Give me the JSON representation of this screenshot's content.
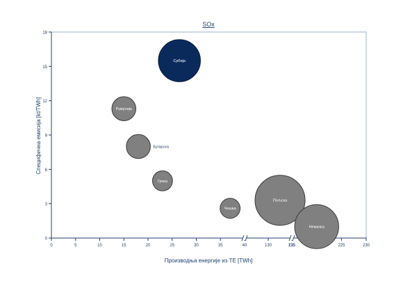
{
  "chart_data": {
    "type": "bubble",
    "title": "SOx",
    "xlabel": "Производња енергије из ТЕ [TWh]",
    "ylabel": "Специфична емисија [kt/TWh]",
    "ylim": [
      0,
      18
    ],
    "y_ticks": [
      "0",
      "3",
      "6",
      "9",
      "12",
      "15",
      "18"
    ],
    "x_segments": [
      {
        "range": [
          0,
          40
        ],
        "ticks": [
          "0",
          "5",
          "10",
          "15",
          "20",
          "25",
          "30",
          "35",
          "40"
        ]
      },
      {
        "range": [
          125,
          135
        ],
        "ticks": [
          "130",
          "135"
        ]
      },
      {
        "range": [
          215,
          230
        ],
        "ticks": [
          "215",
          "220",
          "225",
          "230"
        ]
      }
    ],
    "axis_break_mark": "//",
    "grid": false,
    "legend": "none",
    "points": [
      {
        "label": "Србија",
        "x": 26.5,
        "y": 15.5,
        "size": 4.2,
        "highlight": true,
        "label_position": "inside"
      },
      {
        "label": "Румунија",
        "x": 15,
        "y": 11.3,
        "size": 2.4,
        "highlight": false,
        "label_position": "inside"
      },
      {
        "label": "Бугарска",
        "x": 18,
        "y": 8.0,
        "size": 2.4,
        "highlight": false,
        "label_position": "right"
      },
      {
        "label": "Грчка",
        "x": 23,
        "y": 5.0,
        "size": 2.0,
        "highlight": false,
        "label_position": "inside"
      },
      {
        "label": "Чешка",
        "x": 37,
        "y": 2.6,
        "size": 2.0,
        "highlight": false,
        "label_position": "inside"
      },
      {
        "label": "Пољска",
        "x": 132.5,
        "y": 3.3,
        "size": 5.0,
        "highlight": false,
        "label_position": "inside"
      },
      {
        "label": "Немачка",
        "x": 220,
        "y": 1.0,
        "size": 4.4,
        "highlight": false,
        "label_position": "inside"
      }
    ],
    "colors": {
      "highlight": "#0b2a5c",
      "bubble": "#808080",
      "bubble_stroke": "#3a3a3a",
      "axis": "#1f3f6f",
      "text": "#1f3f6f",
      "label_inside": "#ffffff",
      "label_outside": "#1f3f6f"
    }
  }
}
